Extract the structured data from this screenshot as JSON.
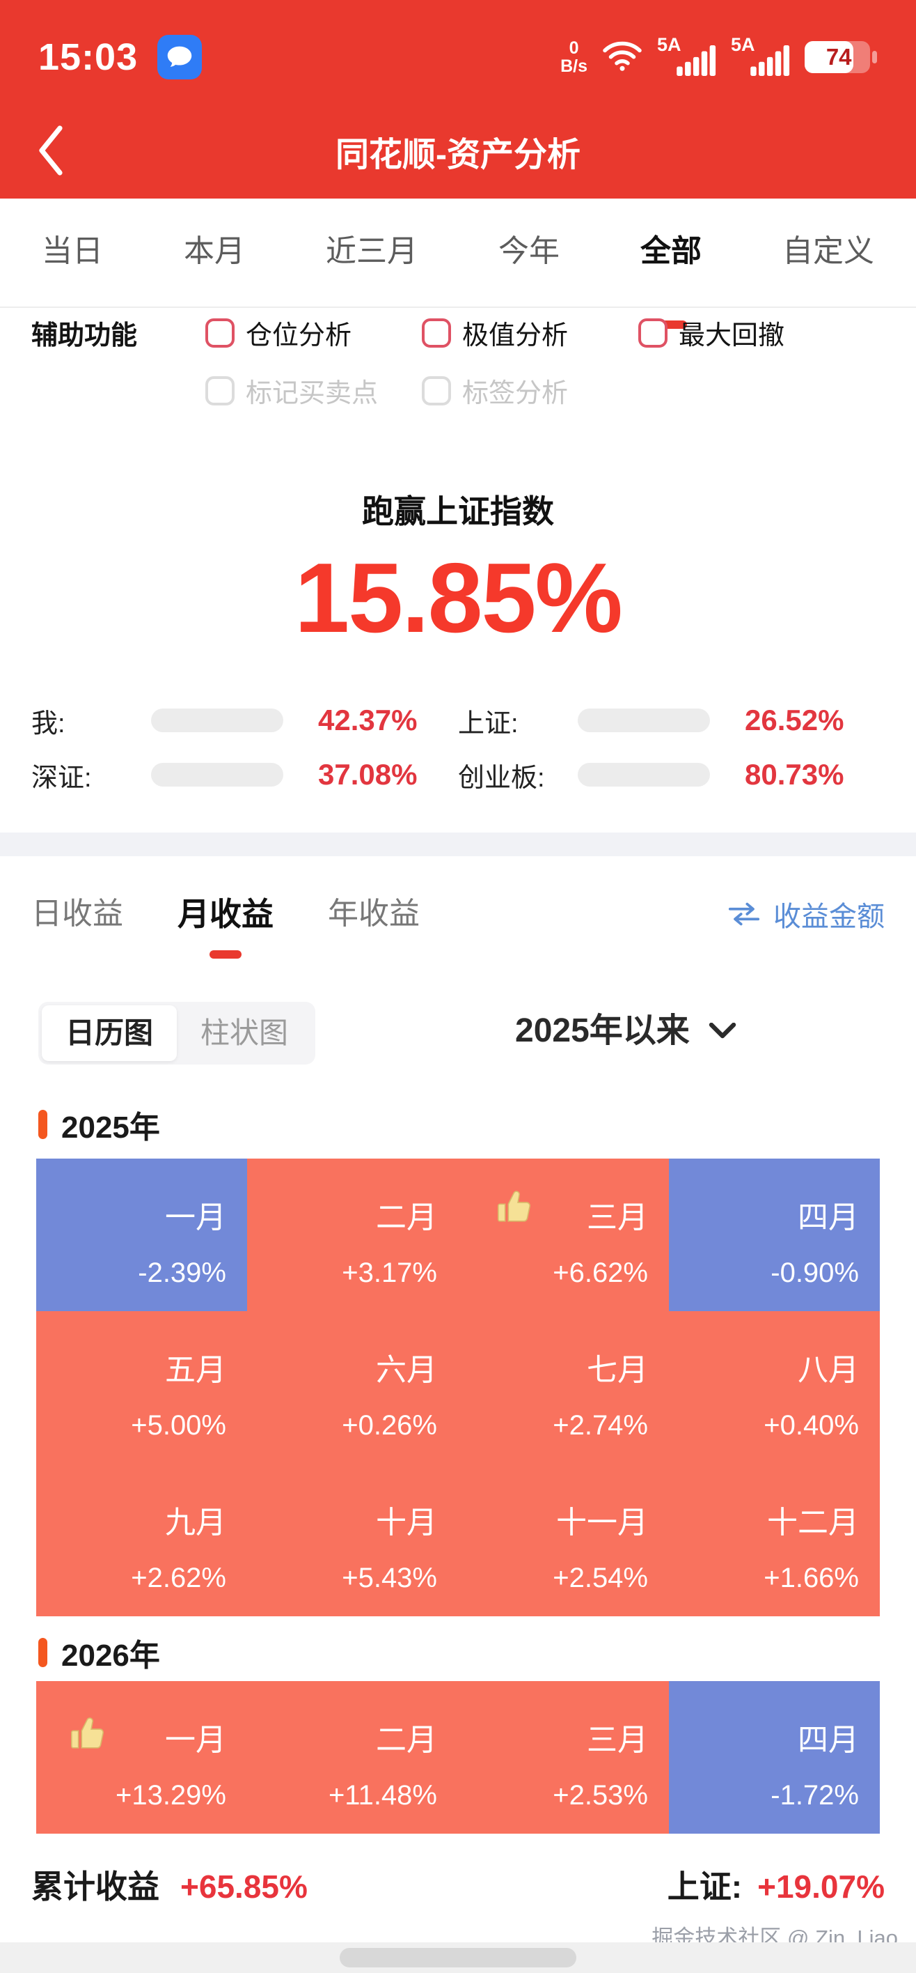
{
  "theme": {
    "header_red": "#e9392e",
    "hero_red": "#f5392b",
    "value_red": "#e2363f",
    "calendar_positive": "#f9725e",
    "calendar_negative": "#7289d8",
    "link_blue": "#5a8dd6",
    "year_marker_orange": "#f4571f",
    "thumb_yellow": "#f6e196"
  },
  "status_bar": {
    "time": "15:03",
    "net_speed_top": "0",
    "net_speed_bottom": "B/s",
    "sim1": "5A",
    "sim2": "5A",
    "battery_level": "74"
  },
  "nav": {
    "title": "同花顺-资产分析"
  },
  "period_tabs": {
    "items": [
      "当日",
      "本月",
      "近三月",
      "今年",
      "全部",
      "自定义"
    ],
    "active": "全部"
  },
  "aux": {
    "label": "辅助功能",
    "row1": [
      {
        "label": "仓位分析",
        "checked": false
      },
      {
        "label": "极值分析",
        "checked": false
      },
      {
        "label": "最大回撤",
        "checked": false
      }
    ],
    "row2": [
      {
        "label": "标记买卖点",
        "checked": false,
        "disabled": true
      },
      {
        "label": "标签分析",
        "checked": false,
        "disabled": true
      }
    ]
  },
  "hero": {
    "caption": "跑赢上证指数",
    "value": "15.85%"
  },
  "comparison": {
    "items": [
      {
        "label": "我:",
        "value": "42.37%",
        "fill_pct": 52
      },
      {
        "label": "上证:",
        "value": "26.52%",
        "fill_pct": 33
      },
      {
        "label": "深证:",
        "value": "37.08%",
        "fill_pct": 46
      },
      {
        "label": "创业板:",
        "value": "80.73%",
        "fill_pct": 100
      }
    ]
  },
  "income_tabs": {
    "items": [
      "日收益",
      "月收益",
      "年收益"
    ],
    "active": "月收益",
    "amount_toggle": "收益金额"
  },
  "view_controls": {
    "segments": [
      "日历图",
      "柱状图"
    ],
    "active": "日历图",
    "range": "2025年以来"
  },
  "calendar": {
    "years": [
      {
        "title": "2025年",
        "months": [
          {
            "label": "一月",
            "value": "-2.39%",
            "negative": true
          },
          {
            "label": "二月",
            "value": "+3.17%"
          },
          {
            "label": "三月",
            "value": "+6.62%",
            "thumb": true
          },
          {
            "label": "四月",
            "value": "-0.90%",
            "negative": true
          },
          {
            "label": "五月",
            "value": "+5.00%"
          },
          {
            "label": "六月",
            "value": "+0.26%"
          },
          {
            "label": "七月",
            "value": "+2.74%"
          },
          {
            "label": "八月",
            "value": "+0.40%"
          },
          {
            "label": "九月",
            "value": "+2.62%"
          },
          {
            "label": "十月",
            "value": "+5.43%"
          },
          {
            "label": "十一月",
            "value": "+2.54%"
          },
          {
            "label": "十二月",
            "value": "+1.66%"
          }
        ]
      },
      {
        "title": "2026年",
        "months": [
          {
            "label": "一月",
            "value": "+13.29%",
            "thumb": true
          },
          {
            "label": "二月",
            "value": "+11.48%"
          },
          {
            "label": "三月",
            "value": "+2.53%"
          },
          {
            "label": "四月",
            "value": "-1.72%",
            "negative": true
          }
        ]
      }
    ]
  },
  "summary": {
    "label": "累计收益",
    "value": "+65.85%",
    "index_label": "上证:",
    "index_value": "+19.07%"
  },
  "watermark": "掘金技术社区 @ Zin_Liao",
  "chart_data": {
    "type": "heatmap",
    "subtype": "calendar-monthly-returns",
    "unit": "%",
    "series": [
      {
        "name": "2025",
        "categories": [
          "一月",
          "二月",
          "三月",
          "四月",
          "五月",
          "六月",
          "七月",
          "八月",
          "九月",
          "十月",
          "十一月",
          "十二月"
        ],
        "values": [
          -2.39,
          3.17,
          6.62,
          -0.9,
          5.0,
          0.26,
          2.74,
          0.4,
          2.62,
          5.43,
          2.54,
          1.66
        ],
        "best_month": "三月"
      },
      {
        "name": "2026",
        "categories": [
          "一月",
          "二月",
          "三月",
          "四月"
        ],
        "values": [
          13.29,
          11.48,
          2.53,
          -1.72
        ],
        "best_month": "一月"
      }
    ],
    "color_rule": "positive=salmon #f9725e, negative=blue #7289d8",
    "cumulative_return": 65.85,
    "benchmark_sse_return": 19.07,
    "outperformance_vs_sse": 15.85,
    "comparison": {
      "我": 42.37,
      "上证": 26.52,
      "深证": 37.08,
      "创业板": 80.73
    }
  }
}
